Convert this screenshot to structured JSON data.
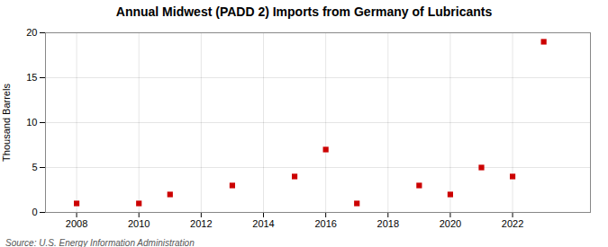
{
  "chart_data": {
    "type": "scatter",
    "title": "Annual Midwest (PADD 2) Imports from Germany of Lubricants",
    "ylabel": "Thousand Barrels",
    "source": "Source: U.S. Energy Information Administration",
    "x": [
      2008,
      2010,
      2011,
      2013,
      2015,
      2016,
      2017,
      2019,
      2020,
      2021,
      2022,
      2023
    ],
    "values": [
      1,
      1,
      2,
      3,
      4,
      7,
      1,
      3,
      2,
      5,
      4,
      19
    ],
    "color": "#cc0000",
    "marker": "square",
    "xlim": [
      2007,
      2024.5
    ],
    "ylim": [
      0,
      20
    ],
    "xticks": [
      2008,
      2010,
      2012,
      2014,
      2016,
      2018,
      2020,
      2022
    ],
    "yticks": [
      0,
      5,
      10,
      15,
      20
    ],
    "grid": true
  }
}
